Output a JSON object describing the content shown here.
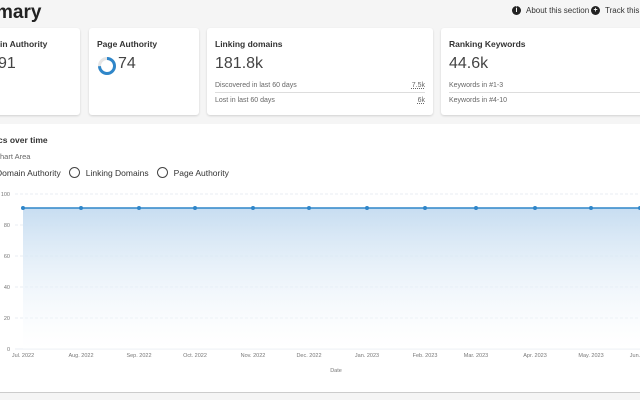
{
  "header": {
    "title": "mary",
    "about": "About this section",
    "track": "Track this sit"
  },
  "cards": [
    {
      "label": "in Authority",
      "value": "91"
    },
    {
      "label": "Page Authority",
      "value": "74",
      "gauge": 74
    },
    {
      "label": "Linking domains",
      "value": "181.8k",
      "rows": [
        {
          "label": "Discovered in last 60 days",
          "value": "7.5k"
        },
        {
          "label": "Lost in last 60 days",
          "value": "6k"
        }
      ]
    },
    {
      "label": "Ranking Keywords",
      "value": "44.6k",
      "rows": [
        {
          "label": "Keywords in #1-3",
          "value": ""
        },
        {
          "label": "Keywords in #4-10",
          "value": ""
        }
      ]
    }
  ],
  "panel": {
    "title": "cs over time",
    "subtitle": "hart Area",
    "radios": [
      "Domain Authority",
      "Linking Domains",
      "Page Authority"
    ]
  },
  "colors": {
    "accent": "#2f86c9",
    "fill": "#c7ddf1"
  },
  "chart_data": {
    "type": "area",
    "xlabel": "Date",
    "ylabel": "",
    "ylim": [
      0,
      100
    ],
    "yticks": [
      0,
      20,
      40,
      60,
      80,
      100
    ],
    "grid": true,
    "x": [
      "Jul. 2022",
      "Aug. 2022",
      "Sep. 2022",
      "Oct. 2022",
      "Nov. 2022",
      "Dec. 2022",
      "Jan. 2023",
      "Feb. 2023",
      "Mar. 2023",
      "Apr. 2023",
      "May. 2023",
      "Jun."
    ],
    "series": [
      {
        "values": [
          91,
          91,
          91,
          91,
          91,
          91,
          91,
          91,
          91,
          91,
          91,
          91
        ]
      }
    ]
  }
}
